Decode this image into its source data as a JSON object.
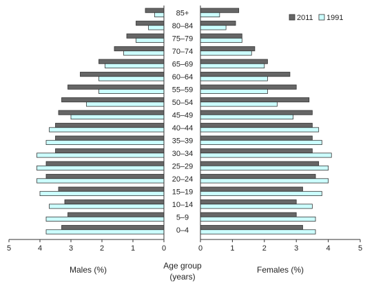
{
  "chart_data": {
    "type": "bar",
    "orientation": "horizontal",
    "subtype": "population-pyramid",
    "categories": [
      "85+",
      "80–84",
      "75–79",
      "70–74",
      "65–69",
      "60–64",
      "55–59",
      "50–54",
      "45–49",
      "40–44",
      "35–39",
      "30–34",
      "25–29",
      "20–24",
      "15–19",
      "10–14",
      "5–9",
      "0–4"
    ],
    "legend": {
      "placement": "top-right",
      "items": [
        "2011",
        "1991"
      ]
    },
    "males": {
      "axis_label": "Males (%)",
      "xlim": [
        5,
        0
      ],
      "ticks": [
        "5",
        "4",
        "3",
        "2",
        "1",
        "0"
      ],
      "series": [
        {
          "name": "2011",
          "color": "#666666",
          "values": [
            0.6,
            0.9,
            1.2,
            1.6,
            2.1,
            2.7,
            3.1,
            3.3,
            3.4,
            3.5,
            3.5,
            3.5,
            3.8,
            3.8,
            3.4,
            3.2,
            3.1,
            3.3
          ]
        },
        {
          "name": "1991",
          "color": "#ccffff",
          "values": [
            0.3,
            0.5,
            0.9,
            1.3,
            1.9,
            2.1,
            2.1,
            2.5,
            3.0,
            3.7,
            3.8,
            4.1,
            4.1,
            4.1,
            4.0,
            3.7,
            3.8,
            3.8
          ]
        }
      ]
    },
    "females": {
      "axis_label": "Females (%)",
      "xlim": [
        0,
        5
      ],
      "ticks": [
        "0",
        "1",
        "2",
        "3",
        "4",
        "5"
      ],
      "series": [
        {
          "name": "2011",
          "color": "#666666",
          "values": [
            1.2,
            1.1,
            1.3,
            1.7,
            2.1,
            2.8,
            3.0,
            3.4,
            3.5,
            3.5,
            3.5,
            3.5,
            3.7,
            3.6,
            3.2,
            3.0,
            3.0,
            3.2
          ]
        },
        {
          "name": "1991",
          "color": "#ccffff",
          "values": [
            0.6,
            0.8,
            1.3,
            1.6,
            2.0,
            2.1,
            2.1,
            2.4,
            2.9,
            3.7,
            3.8,
            4.1,
            4.0,
            4.0,
            3.8,
            3.5,
            3.6,
            3.6
          ]
        }
      ]
    },
    "center_label": [
      "Age group",
      "(years)"
    ]
  }
}
